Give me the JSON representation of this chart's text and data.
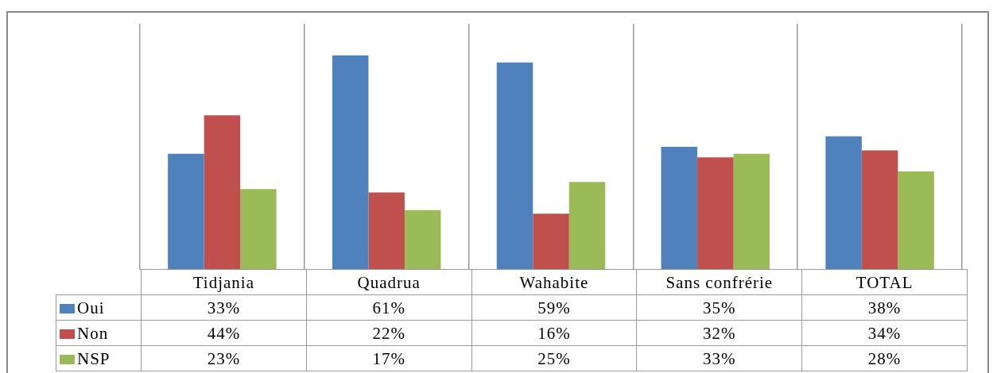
{
  "chart_data": {
    "type": "bar",
    "categories": [
      "Tidjania",
      "Quadrua",
      "Wahabite",
      "Sans confrérie",
      "TOTAL"
    ],
    "series": [
      {
        "name": "Oui",
        "color": "#4f81bd",
        "values": [
          33,
          61,
          59,
          35,
          38
        ],
        "value_labels": [
          "33%",
          "61%",
          "59%",
          "35%",
          "38%"
        ]
      },
      {
        "name": "Non",
        "color": "#c0504d",
        "values": [
          44,
          22,
          16,
          32,
          34
        ],
        "value_labels": [
          "44%",
          "22%",
          "16%",
          "32%",
          "34%"
        ]
      },
      {
        "name": "NSP",
        "color": "#9bbb59",
        "values": [
          23,
          17,
          25,
          33,
          28
        ],
        "value_labels": [
          "23%",
          "17%",
          "25%",
          "33%",
          "28%"
        ]
      }
    ],
    "grid": "x",
    "legend": "bottom left",
    "tick_labels": "x"
  }
}
